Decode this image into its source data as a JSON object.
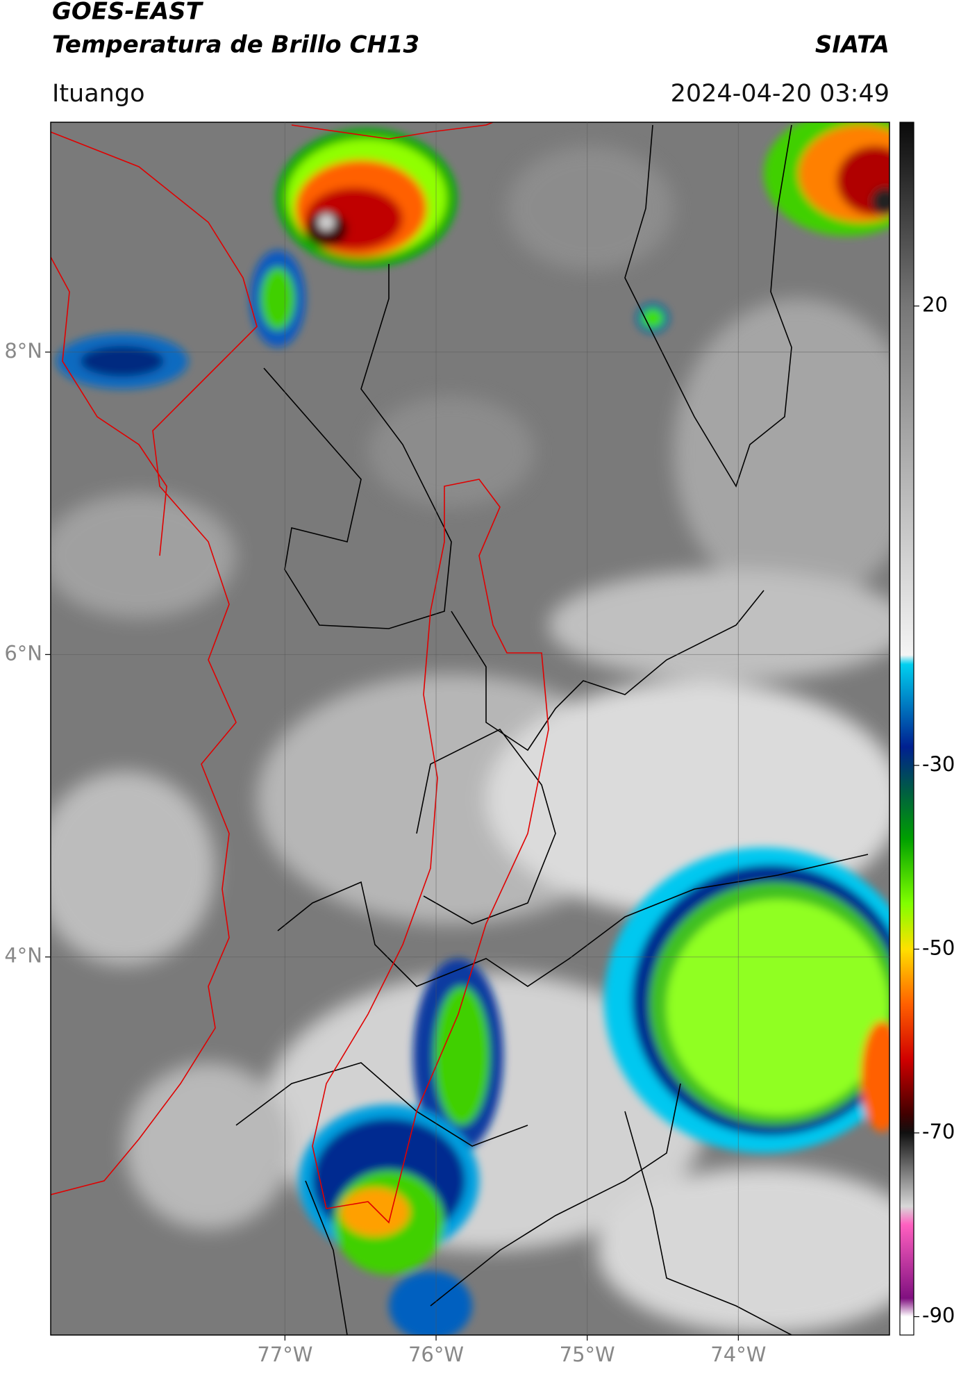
{
  "header": {
    "title": [
      "GOES-EAST",
      "Temperatura de Brillo CH13"
    ],
    "source": "SIATA",
    "region": "Ituango",
    "datetime": "2024-04-20 03:49"
  },
  "map": {
    "xlim": [
      -78.55,
      -73.0
    ],
    "ylim": [
      1.5,
      9.52
    ],
    "xticks": [
      {
        "value": -77,
        "label": "77°W"
      },
      {
        "value": -76,
        "label": "76°W"
      },
      {
        "value": -75,
        "label": "75°W"
      },
      {
        "value": -74,
        "label": "74°W"
      }
    ],
    "yticks": [
      {
        "value": 8,
        "label": "8°N"
      },
      {
        "value": 6,
        "label": "6°N"
      },
      {
        "value": 4,
        "label": "4°N"
      }
    ],
    "grid": true
  },
  "colorbar": {
    "lim": [
      -92,
      40
    ],
    "ticks": [
      20,
      -30,
      -50,
      -70,
      -90
    ],
    "stops": [
      {
        "value": 40,
        "color": "#0a0a0a"
      },
      {
        "value": 20,
        "color": "#777777"
      },
      {
        "value": -18,
        "color": "#f4f4f4"
      },
      {
        "value": -19,
        "color": "#00d0f0"
      },
      {
        "value": -28,
        "color": "#002090"
      },
      {
        "value": -33,
        "color": "#006040"
      },
      {
        "value": -38,
        "color": "#00a000"
      },
      {
        "value": -45,
        "color": "#80ff00"
      },
      {
        "value": -50,
        "color": "#ffe000"
      },
      {
        "value": -56,
        "color": "#ff6000"
      },
      {
        "value": -62,
        "color": "#d00000"
      },
      {
        "value": -68,
        "color": "#400000"
      },
      {
        "value": -70,
        "color": "#101010"
      },
      {
        "value": -78,
        "color": "#d8d8d8"
      },
      {
        "value": -80,
        "color": "#ff60c0"
      },
      {
        "value": -88,
        "color": "#801080"
      },
      {
        "value": -90,
        "color": "#ffffff"
      }
    ]
  }
}
